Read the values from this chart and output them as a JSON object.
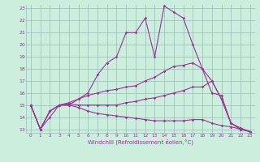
{
  "xlabel": "Windchill (Refroidissement éolien,°C)",
  "bg_color": "#cceedd",
  "line_color": "#993399",
  "grid_color": "#99bbbb",
  "xlim": [
    -0.5,
    23.5
  ],
  "ylim": [
    12.7,
    23.3
  ],
  "yticks": [
    13,
    14,
    15,
    16,
    17,
    18,
    19,
    20,
    21,
    22,
    23
  ],
  "xticks": [
    0,
    1,
    2,
    3,
    4,
    5,
    6,
    7,
    8,
    9,
    10,
    11,
    12,
    13,
    14,
    15,
    16,
    17,
    18,
    19,
    20,
    21,
    22,
    23
  ],
  "lines": [
    [
      15,
      13,
      14,
      15,
      15,
      15.5,
      16,
      17.5,
      18.5,
      19,
      21,
      21,
      22.2,
      19,
      23.2,
      22.7,
      22.2,
      20,
      18,
      17,
      15.5,
      13.5,
      13.1,
      12.8
    ],
    [
      15,
      13,
      14.5,
      15,
      15.2,
      15.5,
      15.8,
      16,
      16.2,
      16.3,
      16.5,
      16.6,
      17,
      17.3,
      17.8,
      18.2,
      18.3,
      18.5,
      18,
      16,
      15.8,
      13.5,
      13,
      12.8
    ],
    [
      15,
      13,
      14.5,
      15,
      15.1,
      15,
      15,
      15,
      15,
      15,
      15.2,
      15.3,
      15.5,
      15.6,
      15.8,
      16,
      16.2,
      16.5,
      16.5,
      17,
      15.5,
      13.5,
      13,
      12.8
    ],
    [
      15,
      13,
      14.5,
      15,
      15,
      14.8,
      14.5,
      14.3,
      14.2,
      14.1,
      14,
      13.9,
      13.8,
      13.7,
      13.7,
      13.7,
      13.7,
      13.8,
      13.8,
      13.5,
      13.3,
      13.2,
      13,
      12.8
    ]
  ]
}
